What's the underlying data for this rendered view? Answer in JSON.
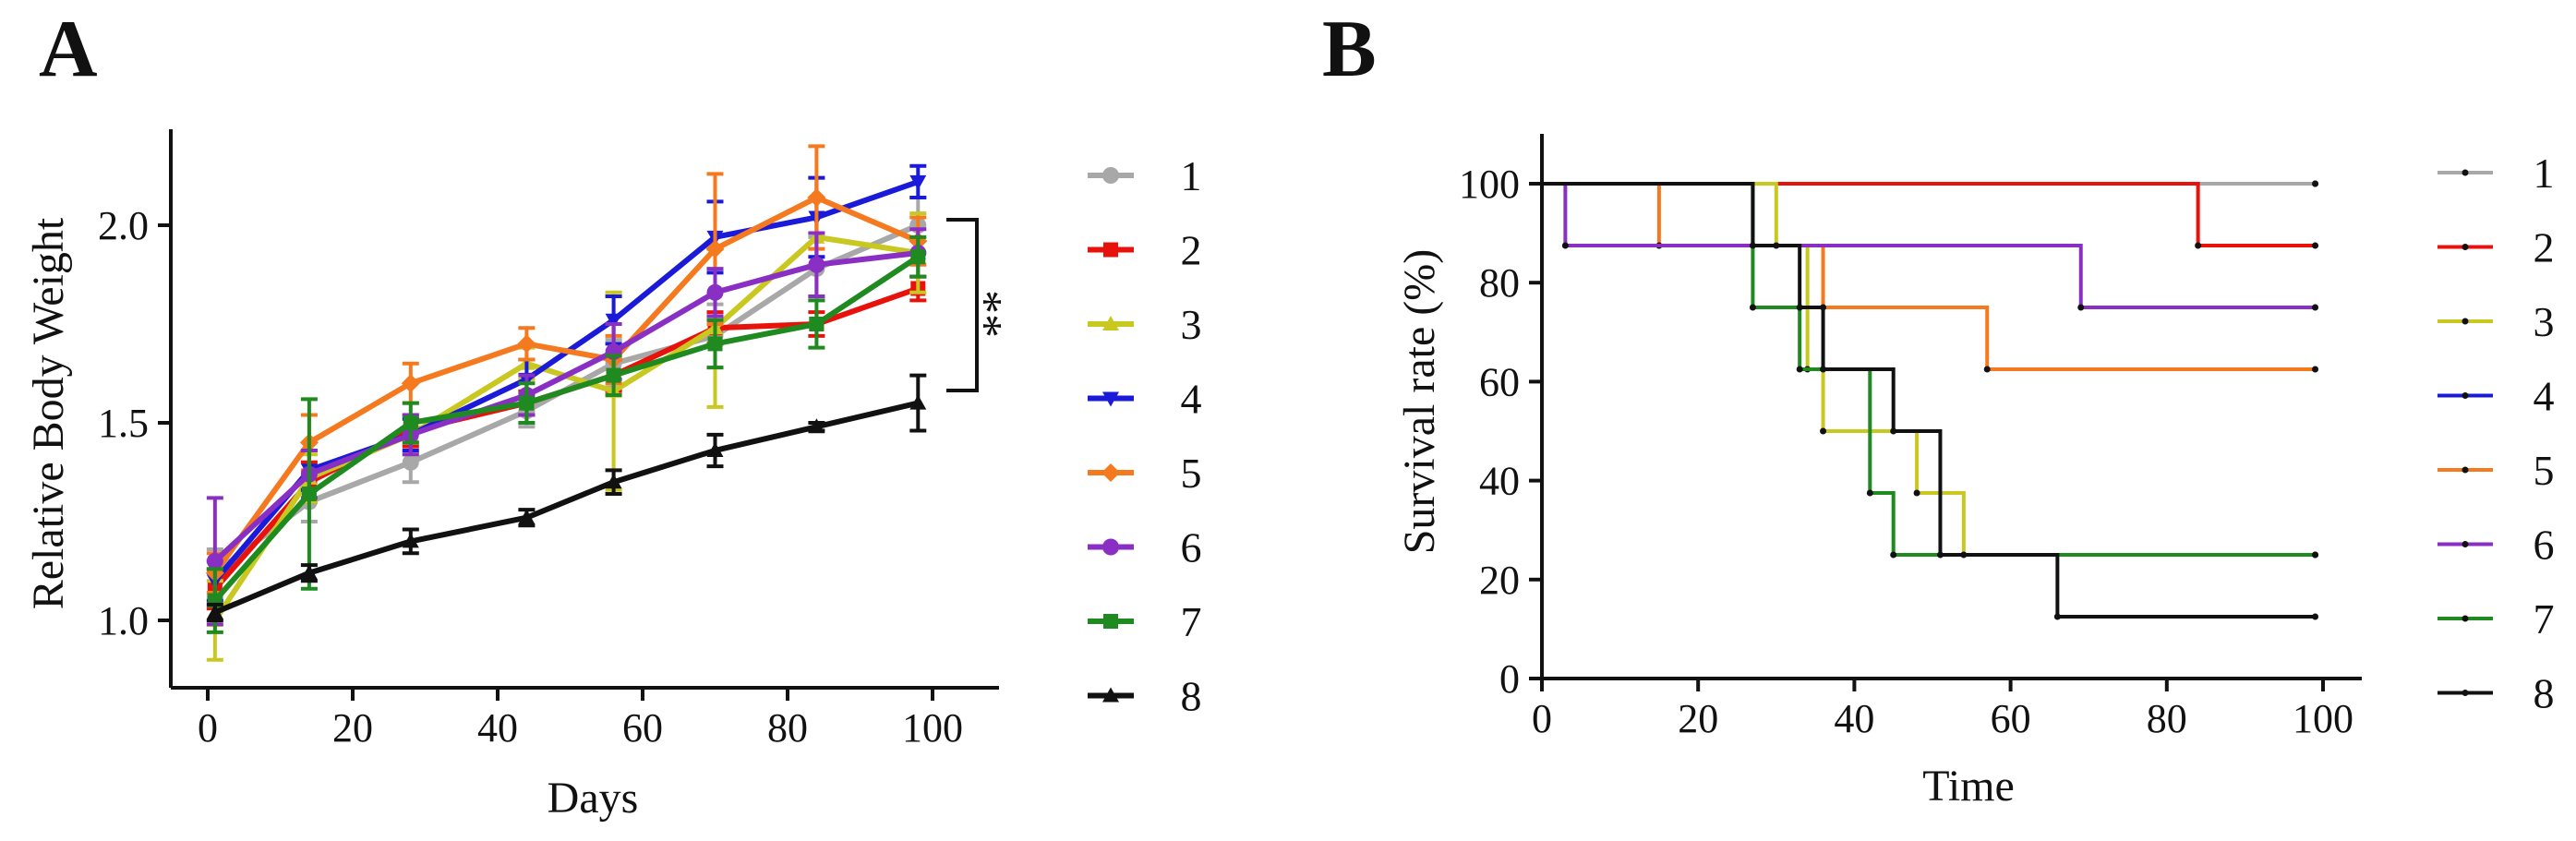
{
  "colors": {
    "1": "#a8a8a8",
    "2": "#e8120c",
    "3": "#c8c820",
    "4": "#1a1ad8",
    "5": "#f5791f",
    "6": "#8a2fc4",
    "7": "#1f8a1f",
    "8": "#111111"
  },
  "chart_data": [
    {
      "panel_label": "A",
      "type": "line",
      "title": "",
      "xlabel": "Days",
      "ylabel": "Relative Body Weight",
      "xlim": [
        -5,
        105
      ],
      "ylim": [
        0.8,
        2.2
      ],
      "xticks": [
        0,
        20,
        40,
        60,
        80,
        100
      ],
      "yticks": [
        1.0,
        1.5,
        2.0
      ],
      "ytick_labels": [
        "1.0",
        "1.5",
        "2.0"
      ],
      "x": [
        1,
        14,
        28,
        44,
        56,
        70,
        84,
        98
      ],
      "legend_position": "right",
      "significance": {
        "label": "**",
        "between": [
          "1-7",
          "8"
        ]
      },
      "series": [
        {
          "name": "1",
          "values": [
            1.12,
            1.3,
            1.4,
            1.53,
            1.65,
            1.72,
            1.89,
            2.0
          ],
          "errors": [
            0.06,
            0.05,
            0.05,
            0.04,
            0.06,
            0.08,
            0.08,
            0.07
          ]
        },
        {
          "name": "2",
          "values": [
            1.08,
            1.35,
            1.48,
            1.55,
            1.62,
            1.74,
            1.75,
            1.84
          ],
          "errors": [
            0.05,
            0.05,
            0.04,
            0.03,
            0.04,
            0.04,
            0.03,
            0.03
          ]
        },
        {
          "name": "3",
          "values": [
            1.0,
            1.36,
            1.47,
            1.65,
            1.58,
            1.74,
            1.97,
            1.93
          ],
          "errors": [
            0.1,
            0.06,
            0.05,
            0.04,
            0.25,
            0.2,
            0.15,
            0.1
          ]
        },
        {
          "name": "4",
          "values": [
            1.1,
            1.38,
            1.47,
            1.61,
            1.76,
            1.97,
            2.02,
            2.11
          ],
          "errors": [
            0.05,
            0.05,
            0.04,
            0.05,
            0.06,
            0.09,
            0.1,
            0.04
          ]
        },
        {
          "name": "5",
          "values": [
            1.12,
            1.45,
            1.6,
            1.7,
            1.66,
            1.94,
            2.07,
            1.96
          ],
          "errors": [
            0.05,
            0.07,
            0.05,
            0.04,
            0.06,
            0.19,
            0.13,
            0.06
          ]
        },
        {
          "name": "6",
          "values": [
            1.15,
            1.37,
            1.47,
            1.57,
            1.68,
            1.83,
            1.9,
            1.93
          ],
          "errors": [
            0.16,
            0.06,
            0.05,
            0.05,
            0.07,
            0.06,
            0.08,
            0.06
          ]
        },
        {
          "name": "7",
          "values": [
            1.05,
            1.32,
            1.5,
            1.55,
            1.62,
            1.7,
            1.75,
            1.92
          ],
          "errors": [
            0.08,
            0.24,
            0.05,
            0.05,
            0.05,
            0.06,
            0.06,
            0.05
          ]
        },
        {
          "name": "8",
          "values": [
            1.02,
            1.12,
            1.2,
            1.26,
            1.35,
            1.43,
            1.49,
            1.55
          ],
          "errors": [
            0.02,
            0.02,
            0.03,
            0.02,
            0.03,
            0.04,
            0.01,
            0.07
          ]
        }
      ]
    },
    {
      "panel_label": "B",
      "type": "line",
      "subtype": "step",
      "title": "",
      "xlabel": "Time",
      "ylabel": "Survival rate (%)",
      "xlim": [
        0,
        105
      ],
      "ylim": [
        0,
        110
      ],
      "xticks": [
        0,
        20,
        40,
        60,
        80,
        100
      ],
      "yticks": [
        0,
        20,
        40,
        60,
        80,
        100
      ],
      "legend_position": "right",
      "series": [
        {
          "name": "1",
          "x": [
            0,
            99
          ],
          "values": [
            100,
            100
          ]
        },
        {
          "name": "2",
          "x": [
            0,
            84,
            99
          ],
          "values": [
            100,
            87.5,
            87.5
          ]
        },
        {
          "name": "3",
          "x": [
            0,
            30,
            34,
            36,
            48,
            54,
            99
          ],
          "values": [
            100,
            87.5,
            62.5,
            50,
            37.5,
            25,
            25
          ]
        },
        {
          "name": "4",
          "x": [
            0,
            99
          ],
          "values": [
            100,
            100
          ]
        },
        {
          "name": "5",
          "x": [
            0,
            15,
            36,
            57,
            99
          ],
          "values": [
            100,
            87.5,
            75,
            62.5,
            62.5
          ]
        },
        {
          "name": "6",
          "x": [
            0,
            3,
            69,
            99
          ],
          "values": [
            100,
            87.5,
            75,
            75
          ]
        },
        {
          "name": "7",
          "x": [
            0,
            27,
            33,
            42,
            45,
            99
          ],
          "values": [
            100,
            75,
            62.5,
            37.5,
            25,
            25
          ]
        },
        {
          "name": "8",
          "x": [
            0,
            27,
            33,
            36,
            45,
            51,
            66,
            99
          ],
          "values": [
            100,
            87.5,
            75,
            62.5,
            50,
            25,
            12.5,
            12.5
          ]
        }
      ]
    }
  ]
}
